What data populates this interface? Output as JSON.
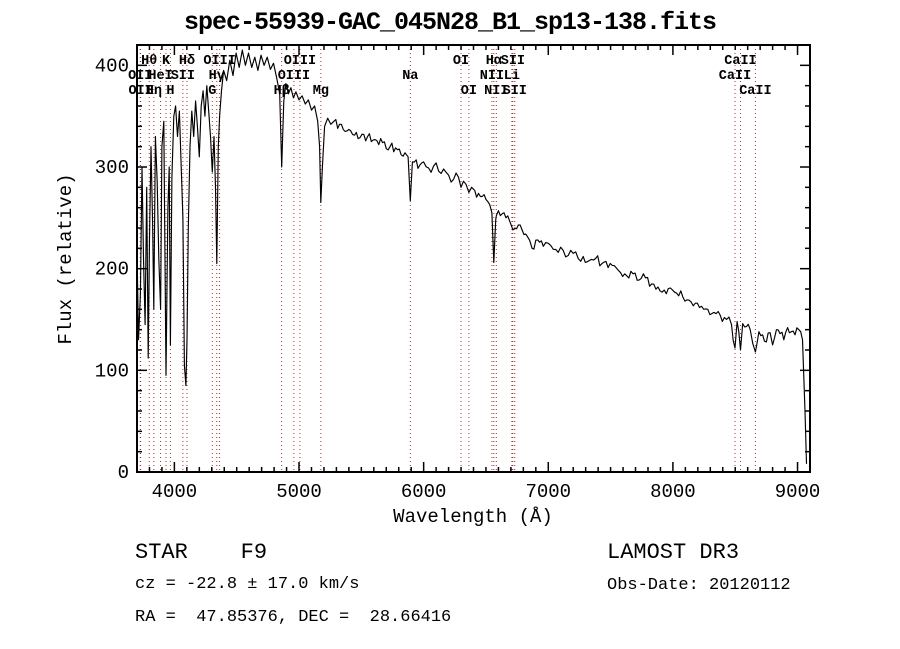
{
  "title": "spec-55939-GAC_045N28_B1_sp13-138.fits",
  "axes": {
    "xlabel": "Wavelength (Å)",
    "ylabel": "Flux (relative)",
    "x_tick_labels": [
      "4000",
      "5000",
      "6000",
      "7000",
      "8000",
      "9000"
    ],
    "x_tick_values": [
      4000,
      5000,
      6000,
      7000,
      8000,
      9000
    ],
    "y_tick_labels": [
      "0",
      "100",
      "200",
      "300",
      "400"
    ],
    "y_tick_values": [
      0,
      100,
      200,
      300,
      400
    ],
    "x_minor_step": 100,
    "y_minor_step": 20
  },
  "footer": {
    "star_class": "STAR    F9",
    "survey_release": "LAMOST DR3",
    "cz": "cz = -22.8 ± 17.0 km/s",
    "obs_date": "Obs-Date: 20120112",
    "coordinates": "RA =  47.85376, DEC =  28.66416"
  },
  "colors": {
    "background": "#ffffff",
    "spectrum": "#000000",
    "frame": "#000000",
    "line_marker": "#9e332b"
  },
  "chart_data": {
    "type": "line",
    "title": "spec-55939-GAC_045N28_B1_sp13-138.fits",
    "xlabel": "Wavelength (Å)",
    "ylabel": "Flux (relative)",
    "xlim": [
      3700,
      9100
    ],
    "ylim": [
      0,
      420
    ],
    "grid": false,
    "legend": "none",
    "series": [
      {
        "name": "spectrum",
        "points": [
          [
            3700,
            220
          ],
          [
            3712,
            130
          ],
          [
            3727,
            175
          ],
          [
            3740,
            300
          ],
          [
            3752,
            210
          ],
          [
            3765,
            145
          ],
          [
            3778,
            280
          ],
          [
            3790,
            112
          ],
          [
            3800,
            230
          ],
          [
            3812,
            320
          ],
          [
            3825,
            245
          ],
          [
            3835,
            160
          ],
          [
            3848,
            330
          ],
          [
            3862,
            285
          ],
          [
            3875,
            210
          ],
          [
            3889,
            160
          ],
          [
            3900,
            320
          ],
          [
            3915,
            345
          ],
          [
            3933,
            95
          ],
          [
            3948,
            260
          ],
          [
            3958,
            300
          ],
          [
            3968,
            125
          ],
          [
            3980,
            290
          ],
          [
            3995,
            350
          ],
          [
            4010,
            360
          ],
          [
            4025,
            330
          ],
          [
            4040,
            355
          ],
          [
            4055,
            300
          ],
          [
            4068,
            250
          ],
          [
            4080,
            105
          ],
          [
            4092,
            85
          ],
          [
            4101,
            130
          ],
          [
            4112,
            240
          ],
          [
            4125,
            320
          ],
          [
            4140,
            355
          ],
          [
            4155,
            330
          ],
          [
            4170,
            365
          ],
          [
            4185,
            340
          ],
          [
            4200,
            310
          ],
          [
            4215,
            360
          ],
          [
            4230,
            375
          ],
          [
            4245,
            350
          ],
          [
            4260,
            380
          ],
          [
            4275,
            355
          ],
          [
            4290,
            330
          ],
          [
            4304,
            295
          ],
          [
            4318,
            330
          ],
          [
            4330,
            280
          ],
          [
            4340,
            205
          ],
          [
            4352,
            320
          ],
          [
            4363,
            350
          ],
          [
            4378,
            375
          ],
          [
            4395,
            395
          ],
          [
            4420,
            385
          ],
          [
            4445,
            405
          ],
          [
            4470,
            390
          ],
          [
            4495,
            412
          ],
          [
            4520,
            398
          ],
          [
            4545,
            415
          ],
          [
            4570,
            400
          ],
          [
            4595,
            412
          ],
          [
            4620,
            398
          ],
          [
            4645,
            408
          ],
          [
            4670,
            395
          ],
          [
            4695,
            410
          ],
          [
            4720,
            400
          ],
          [
            4745,
            408
          ],
          [
            4770,
            396
          ],
          [
            4795,
            402
          ],
          [
            4820,
            388
          ],
          [
            4845,
            372
          ],
          [
            4861,
            300
          ],
          [
            4878,
            365
          ],
          [
            4895,
            382
          ],
          [
            4915,
            372
          ],
          [
            4935,
            378
          ],
          [
            4955,
            368
          ],
          [
            4975,
            374
          ],
          [
            5000,
            366
          ],
          [
            5025,
            370
          ],
          [
            5050,
            362
          ],
          [
            5075,
            366
          ],
          [
            5100,
            356
          ],
          [
            5125,
            360
          ],
          [
            5150,
            345
          ],
          [
            5165,
            320
          ],
          [
            5175,
            265
          ],
          [
            5188,
            300
          ],
          [
            5205,
            340
          ],
          [
            5230,
            348
          ],
          [
            5255,
            342
          ],
          [
            5280,
            345
          ],
          [
            5310,
            338
          ],
          [
            5340,
            342
          ],
          [
            5370,
            335
          ],
          [
            5400,
            337
          ],
          [
            5430,
            332
          ],
          [
            5460,
            334
          ],
          [
            5490,
            329
          ],
          [
            5520,
            332
          ],
          [
            5550,
            330
          ],
          [
            5580,
            325
          ],
          [
            5610,
            327
          ],
          [
            5640,
            322
          ],
          [
            5670,
            324
          ],
          [
            5700,
            318
          ],
          [
            5730,
            320
          ],
          [
            5760,
            315
          ],
          [
            5790,
            317
          ],
          [
            5820,
            312
          ],
          [
            5850,
            314
          ],
          [
            5875,
            310
          ],
          [
            5893,
            267
          ],
          [
            5910,
            305
          ],
          [
            5940,
            307
          ],
          [
            5970,
            302
          ],
          [
            6000,
            305
          ],
          [
            6040,
            299
          ],
          [
            6080,
            301
          ],
          [
            6120,
            296
          ],
          [
            6160,
            298
          ],
          [
            6200,
            292
          ],
          [
            6240,
            288
          ],
          [
            6280,
            290
          ],
          [
            6300,
            280
          ],
          [
            6320,
            286
          ],
          [
            6340,
            283
          ],
          [
            6363,
            275
          ],
          [
            6385,
            280
          ],
          [
            6410,
            277
          ],
          [
            6440,
            274
          ],
          [
            6470,
            271
          ],
          [
            6500,
            268
          ],
          [
            6530,
            263
          ],
          [
            6548,
            255
          ],
          [
            6563,
            206
          ],
          [
            6578,
            248
          ],
          [
            6583,
            252
          ],
          [
            6600,
            257
          ],
          [
            6630,
            254
          ],
          [
            6660,
            250
          ],
          [
            6690,
            247
          ],
          [
            6708,
            241
          ],
          [
            6716,
            238
          ],
          [
            6731,
            240
          ],
          [
            6760,
            243
          ],
          [
            6790,
            238
          ],
          [
            6820,
            234
          ],
          [
            6850,
            228
          ],
          [
            6870,
            220
          ],
          [
            6900,
            228
          ],
          [
            6930,
            226
          ],
          [
            6960,
            222
          ],
          [
            7000,
            225
          ],
          [
            7040,
            219
          ],
          [
            7080,
            216
          ],
          [
            7120,
            218
          ],
          [
            7160,
            213
          ],
          [
            7200,
            215
          ],
          [
            7240,
            210
          ],
          [
            7280,
            212
          ],
          [
            7330,
            208
          ],
          [
            7380,
            210
          ],
          [
            7430,
            205
          ],
          [
            7480,
            201
          ],
          [
            7530,
            203
          ],
          [
            7580,
            196
          ],
          [
            7630,
            193
          ],
          [
            7680,
            195
          ],
          [
            7730,
            189
          ],
          [
            7780,
            191
          ],
          [
            7830,
            185
          ],
          [
            7880,
            182
          ],
          [
            7930,
            179
          ],
          [
            7980,
            181
          ],
          [
            8030,
            176
          ],
          [
            8080,
            172
          ],
          [
            8130,
            169
          ],
          [
            8180,
            166
          ],
          [
            8230,
            163
          ],
          [
            8280,
            160
          ],
          [
            8330,
            157
          ],
          [
            8380,
            154
          ],
          [
            8430,
            150
          ],
          [
            8470,
            145
          ],
          [
            8498,
            122
          ],
          [
            8515,
            148
          ],
          [
            8542,
            120
          ],
          [
            8560,
            146
          ],
          [
            8590,
            143
          ],
          [
            8620,
            140
          ],
          [
            8662,
            118
          ],
          [
            8690,
            138
          ],
          [
            8720,
            135
          ],
          [
            8750,
            128
          ],
          [
            8780,
            137
          ],
          [
            8800,
            125
          ],
          [
            8830,
            140
          ],
          [
            8860,
            136
          ],
          [
            8890,
            130
          ],
          [
            8920,
            142
          ],
          [
            8950,
            138
          ],
          [
            8980,
            135
          ],
          [
            9010,
            140
          ],
          [
            9040,
            130
          ],
          [
            9060,
            60
          ],
          [
            9072,
            8
          ]
        ]
      }
    ],
    "noise_regions": [
      {
        "max_wavelength": 4430,
        "amplitude": 26
      },
      {
        "max_wavelength": 5250,
        "amplitude": 11
      },
      {
        "max_wavelength": 6600,
        "amplitude": 6
      },
      {
        "max_wavelength": 9100,
        "amplitude": 5
      }
    ],
    "line_markers": [
      {
        "label": "Hθ",
        "wavelength": 3798,
        "row": 1
      },
      {
        "label": "K",
        "wavelength": 3933,
        "row": 1
      },
      {
        "label": "Hδ",
        "wavelength": 4101,
        "row": 1
      },
      {
        "label": "OIII",
        "wavelength": 4363,
        "row": 1
      },
      {
        "label": "OIII",
        "wavelength": 5007,
        "row": 1
      },
      {
        "label": "OI",
        "wavelength": 6300,
        "row": 1
      },
      {
        "label": "Hα",
        "wavelength": 6563,
        "row": 1
      },
      {
        "label": "SII",
        "wavelength": 6716,
        "row": 1
      },
      {
        "label": "CaII",
        "wavelength": 8542,
        "row": 1
      },
      {
        "label": "OII",
        "wavelength": 3726,
        "row": 2
      },
      {
        "label": "HeI",
        "wavelength": 3889,
        "row": 2
      },
      {
        "label": "SII",
        "wavelength": 4068,
        "row": 2
      },
      {
        "label": "Hγ",
        "wavelength": 4340,
        "row": 2
      },
      {
        "label": "OIII",
        "wavelength": 4959,
        "row": 2
      },
      {
        "label": "Na",
        "wavelength": 5893,
        "row": 2
      },
      {
        "label": "NII",
        "wavelength": 6548,
        "row": 2
      },
      {
        "label": "Li",
        "wavelength": 6708,
        "row": 2
      },
      {
        "label": "CaII",
        "wavelength": 8498,
        "row": 2
      },
      {
        "label": "OII",
        "wavelength": 3729,
        "row": 3
      },
      {
        "label": "Hη",
        "wavelength": 3835,
        "row": 3
      },
      {
        "label": "H",
        "wavelength": 3968,
        "row": 3
      },
      {
        "label": "G",
        "wavelength": 4304,
        "row": 3
      },
      {
        "label": "Hβ",
        "wavelength": 4861,
        "row": 3
      },
      {
        "label": "Mg",
        "wavelength": 5175,
        "row": 3
      },
      {
        "label": "OI",
        "wavelength": 6363,
        "row": 3
      },
      {
        "label": "NII",
        "wavelength": 6583,
        "row": 3
      },
      {
        "label": "SII",
        "wavelength": 6731,
        "row": 3
      },
      {
        "label": "CaII",
        "wavelength": 8662,
        "row": 3
      }
    ]
  }
}
